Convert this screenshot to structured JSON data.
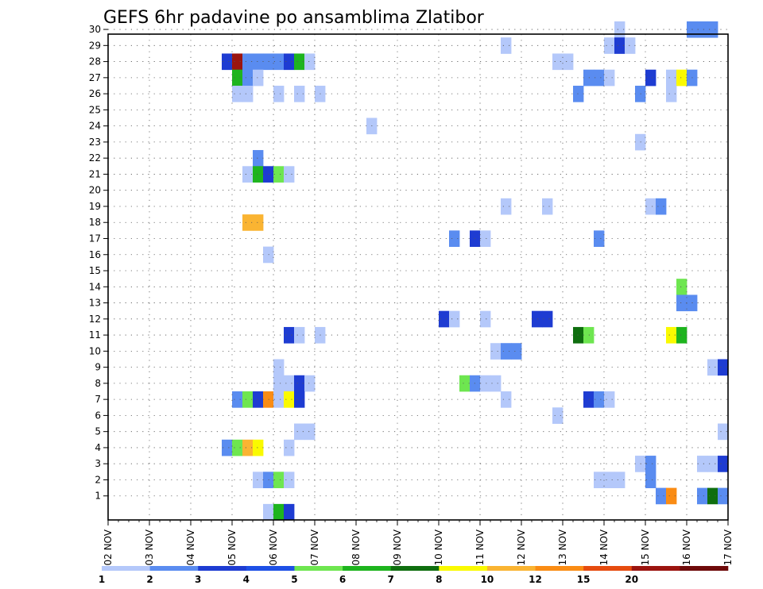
{
  "chart_data": {
    "type": "heatmap",
    "title": "GEFS 6hr padavine po ansamblima Zlatibor",
    "xlabel": "",
    "ylabel": "",
    "x_tick_labels": [
      "02 NOV",
      "03 NOV",
      "04 NOV",
      "05 NOV",
      "06 NOV",
      "07 NOV",
      "08 NOV",
      "09 NOV",
      "10 NOV",
      "11 NOV",
      "12 NOV",
      "13 NOV",
      "14 NOV",
      "15 NOV",
      "16 NOV",
      "17 NOV"
    ],
    "y_tick_labels": [
      "1",
      "2",
      "3",
      "4",
      "5",
      "6",
      "7",
      "8",
      "9",
      "10",
      "11",
      "12",
      "13",
      "14",
      "15",
      "16",
      "17",
      "18",
      "19",
      "20",
      "21",
      "22",
      "23",
      "24",
      "25",
      "26",
      "27",
      "28",
      "29",
      "30"
    ],
    "xlim_steps": [
      0,
      60
    ],
    "ylim_members": [
      0,
      30
    ],
    "grid": true,
    "colorbar": {
      "position": "bottom",
      "tick_labels": [
        "1",
        "2",
        "3",
        "4",
        "5",
        "6",
        "7",
        "8",
        "10",
        "12",
        "15",
        "20"
      ],
      "colors": [
        "#b4c8fa",
        "#5a8cf0",
        "#1e3cd2",
        "#1e50e6",
        "#6ee650",
        "#1eb41e",
        "#0f6e0f",
        "#fafa00",
        "#fab432",
        "#fa8c14",
        "#e64b0f",
        "#9b140f",
        "#6e0a0a"
      ]
    },
    "cell_note": "cells listed as [member, step, level]; step = 6h step from 02 NOV 00z, level = colorbar bin index",
    "cells": [
      [
        30,
        49,
        0
      ],
      [
        30,
        56,
        1
      ],
      [
        30,
        57,
        1
      ],
      [
        30,
        58,
        1
      ],
      [
        29,
        38,
        0
      ],
      [
        29,
        48,
        0
      ],
      [
        29,
        49,
        2
      ],
      [
        29,
        50,
        0
      ],
      [
        28,
        11,
        2
      ],
      [
        28,
        12,
        11
      ],
      [
        28,
        13,
        1
      ],
      [
        28,
        14,
        1
      ],
      [
        28,
        15,
        1
      ],
      [
        28,
        16,
        1
      ],
      [
        28,
        17,
        2
      ],
      [
        28,
        18,
        5
      ],
      [
        28,
        19,
        0
      ],
      [
        28,
        43,
        0
      ],
      [
        28,
        44,
        0
      ],
      [
        27,
        12,
        5
      ],
      [
        27,
        13,
        1
      ],
      [
        27,
        14,
        0
      ],
      [
        27,
        46,
        1
      ],
      [
        27,
        47,
        1
      ],
      [
        27,
        48,
        0
      ],
      [
        27,
        52,
        2
      ],
      [
        27,
        54,
        0
      ],
      [
        27,
        55,
        7
      ],
      [
        27,
        56,
        1
      ],
      [
        26,
        12,
        0
      ],
      [
        26,
        13,
        0
      ],
      [
        26,
        16,
        0
      ],
      [
        26,
        18,
        0
      ],
      [
        26,
        20,
        0
      ],
      [
        26,
        45,
        1
      ],
      [
        26,
        51,
        1
      ],
      [
        26,
        54,
        0
      ],
      [
        24,
        25,
        0
      ],
      [
        23,
        51,
        0
      ],
      [
        22,
        14,
        1
      ],
      [
        21,
        13,
        0
      ],
      [
        21,
        14,
        5
      ],
      [
        21,
        15,
        2
      ],
      [
        21,
        16,
        4
      ],
      [
        21,
        17,
        0
      ],
      [
        19,
        38,
        0
      ],
      [
        19,
        42,
        0
      ],
      [
        19,
        52,
        0
      ],
      [
        19,
        53,
        1
      ],
      [
        18,
        13,
        8
      ],
      [
        18,
        14,
        8
      ],
      [
        17,
        33,
        1
      ],
      [
        17,
        35,
        2
      ],
      [
        17,
        36,
        0
      ],
      [
        17,
        47,
        1
      ],
      [
        16,
        15,
        0
      ],
      [
        14,
        55,
        4
      ],
      [
        13,
        55,
        1
      ],
      [
        13,
        56,
        1
      ],
      [
        12,
        32,
        2
      ],
      [
        12,
        33,
        0
      ],
      [
        12,
        36,
        0
      ],
      [
        12,
        41,
        2
      ],
      [
        12,
        42,
        2
      ],
      [
        11,
        17,
        2
      ],
      [
        11,
        18,
        0
      ],
      [
        11,
        20,
        0
      ],
      [
        11,
        45,
        6
      ],
      [
        11,
        46,
        4
      ],
      [
        11,
        54,
        7
      ],
      [
        11,
        55,
        5
      ],
      [
        10,
        37,
        0
      ],
      [
        10,
        38,
        1
      ],
      [
        10,
        39,
        1
      ],
      [
        9,
        16,
        0
      ],
      [
        9,
        58,
        0
      ],
      [
        9,
        59,
        2
      ],
      [
        8,
        16,
        0
      ],
      [
        8,
        17,
        0
      ],
      [
        8,
        18,
        2
      ],
      [
        8,
        19,
        0
      ],
      [
        8,
        34,
        4
      ],
      [
        8,
        35,
        1
      ],
      [
        8,
        36,
        0
      ],
      [
        8,
        37,
        0
      ],
      [
        7,
        12,
        1
      ],
      [
        7,
        13,
        4
      ],
      [
        7,
        14,
        2
      ],
      [
        7,
        15,
        9
      ],
      [
        7,
        16,
        0
      ],
      [
        7,
        17,
        7
      ],
      [
        7,
        18,
        2
      ],
      [
        7,
        38,
        0
      ],
      [
        7,
        46,
        2
      ],
      [
        7,
        47,
        1
      ],
      [
        7,
        48,
        0
      ],
      [
        6,
        43,
        0
      ],
      [
        5,
        18,
        0
      ],
      [
        5,
        19,
        0
      ],
      [
        5,
        59,
        0
      ],
      [
        4,
        11,
        1
      ],
      [
        4,
        12,
        4
      ],
      [
        4,
        13,
        8
      ],
      [
        4,
        14,
        7
      ],
      [
        4,
        17,
        0
      ],
      [
        3,
        51,
        0
      ],
      [
        3,
        52,
        1
      ],
      [
        3,
        57,
        0
      ],
      [
        3,
        58,
        0
      ],
      [
        3,
        59,
        2
      ],
      [
        2,
        14,
        0
      ],
      [
        2,
        15,
        1
      ],
      [
        2,
        16,
        4
      ],
      [
        2,
        17,
        0
      ],
      [
        2,
        47,
        0
      ],
      [
        2,
        48,
        0
      ],
      [
        2,
        49,
        0
      ],
      [
        2,
        52,
        1
      ],
      [
        1,
        53,
        1
      ],
      [
        1,
        54,
        9
      ],
      [
        1,
        57,
        1
      ],
      [
        1,
        58,
        6
      ],
      [
        1,
        59,
        1
      ],
      [
        0,
        15,
        0
      ],
      [
        0,
        16,
        5
      ],
      [
        0,
        17,
        2
      ]
    ]
  }
}
